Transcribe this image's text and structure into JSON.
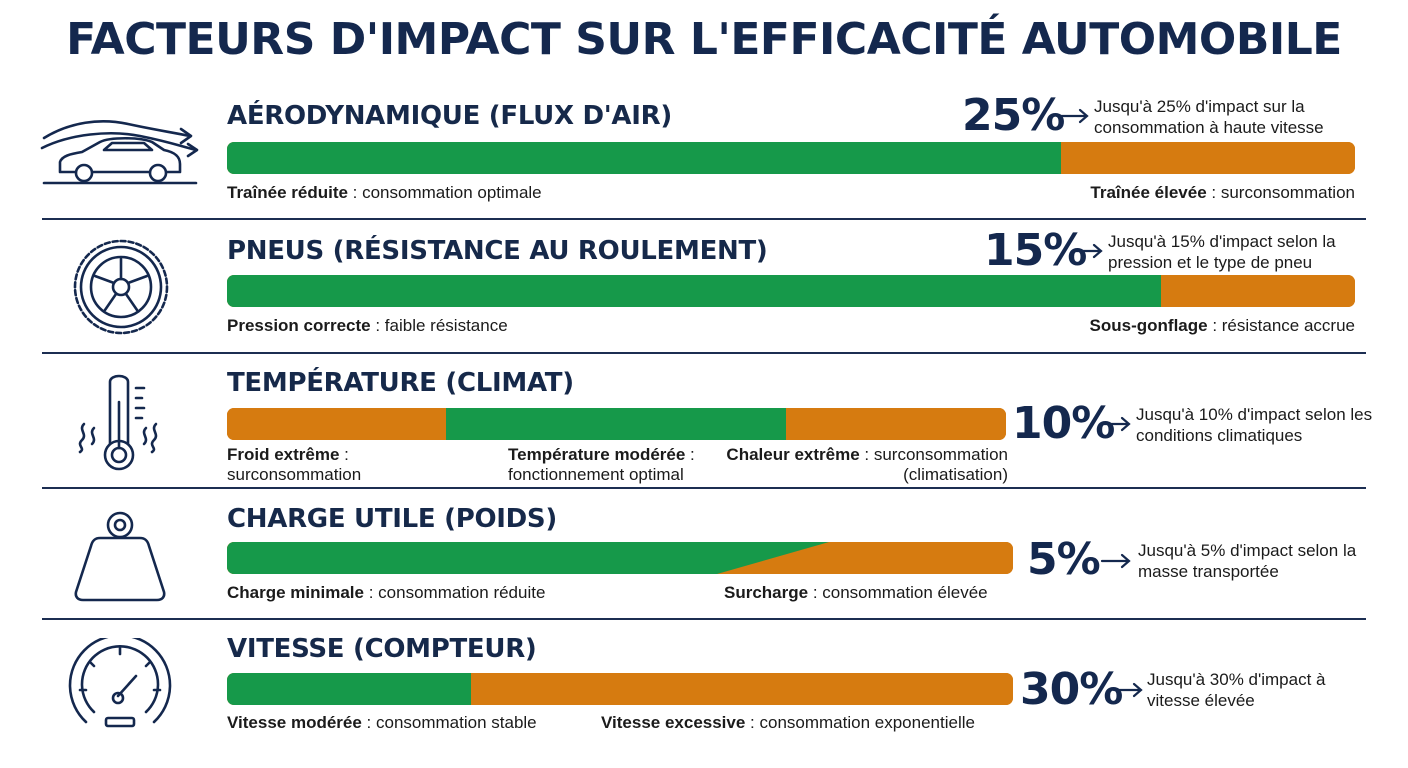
{
  "title": "FACTEURS D'IMPACT SUR L'EFFICACITÉ AUTOMOBILE",
  "colors": {
    "green": "#16994a",
    "orange": "#d67b10",
    "navy": "#14284e"
  },
  "factors": [
    {
      "icon": "car-airflow-icon",
      "heading": "AÉRODYNAMIQUE (FLUX D'AIR)",
      "percent": "25%",
      "percent_value": 25,
      "note": "Jusqu'à 25% d'impact sur la consommation à haute vitesse",
      "segments": [
        {
          "color": "green",
          "fraction": 0.738
        },
        {
          "color": "orange",
          "fraction": 0.262
        }
      ],
      "labels": [
        {
          "bold": "Traînée réduite",
          "text": " : consommation optimale"
        },
        {
          "bold": "Traînée élevée",
          "text": " : surconsommation"
        }
      ]
    },
    {
      "icon": "tire-icon",
      "heading": "PNEUS (RÉSISTANCE AU ROULEMENT)",
      "percent": "15%",
      "percent_value": 15,
      "note": "Jusqu'à 15% d'impact selon la pression et le type de pneu",
      "segments": [
        {
          "color": "green",
          "fraction": 0.827
        },
        {
          "color": "orange",
          "fraction": 0.173
        }
      ],
      "labels": [
        {
          "bold": "Pression correcte",
          "text": " : faible résistance"
        },
        {
          "bold": "Sous-gonflage",
          "text": " : résistance accrue"
        }
      ]
    },
    {
      "icon": "thermometer-icon",
      "heading": "TEMPÉRATURE (CLIMAT)",
      "percent": "10%",
      "percent_value": 10,
      "note": "Jusqu'à 10% d'impact selon les conditions climatiques",
      "segments": [
        {
          "color": "orange",
          "fraction": 0.28
        },
        {
          "color": "green",
          "fraction": 0.437
        },
        {
          "color": "orange",
          "fraction": 0.283
        }
      ],
      "labels": [
        {
          "bold": "Froid extrême",
          "text": " :",
          "line2": "surconsommation"
        },
        {
          "bold": "Température modérée",
          "text": " :",
          "line2": "fonctionnement optimal"
        },
        {
          "bold": "Chaleur extrême",
          "text": " : surconsommation",
          "line2": "(climatisation)"
        }
      ]
    },
    {
      "icon": "weight-icon",
      "heading": "CHARGE UTILE (POIDS)",
      "percent": "5%",
      "percent_value": 5,
      "note": "Jusqu'à 5% d'impact selon la masse transportée",
      "segments": [
        {
          "color": "green",
          "fraction": 0.77
        },
        {
          "color": "orange",
          "fraction": 0.23
        }
      ],
      "labels": [
        {
          "bold": "Charge minimale",
          "text": " : consommation réduite"
        },
        {
          "bold": "Surcharge",
          "text": " : consommation élevée"
        }
      ]
    },
    {
      "icon": "speedometer-icon",
      "heading": "VITESSE (COMPTEUR)",
      "percent": "30%",
      "percent_value": 30,
      "note": "Jusqu'à 30% d'impact à vitesse élevée",
      "segments": [
        {
          "color": "green",
          "fraction": 0.31
        },
        {
          "color": "orange",
          "fraction": 0.69
        }
      ],
      "labels": [
        {
          "bold": "Vitesse modérée",
          "text": " : consommation stable"
        },
        {
          "bold": "Vitesse excessive",
          "text": " : consommation exponentielle"
        }
      ]
    }
  ]
}
